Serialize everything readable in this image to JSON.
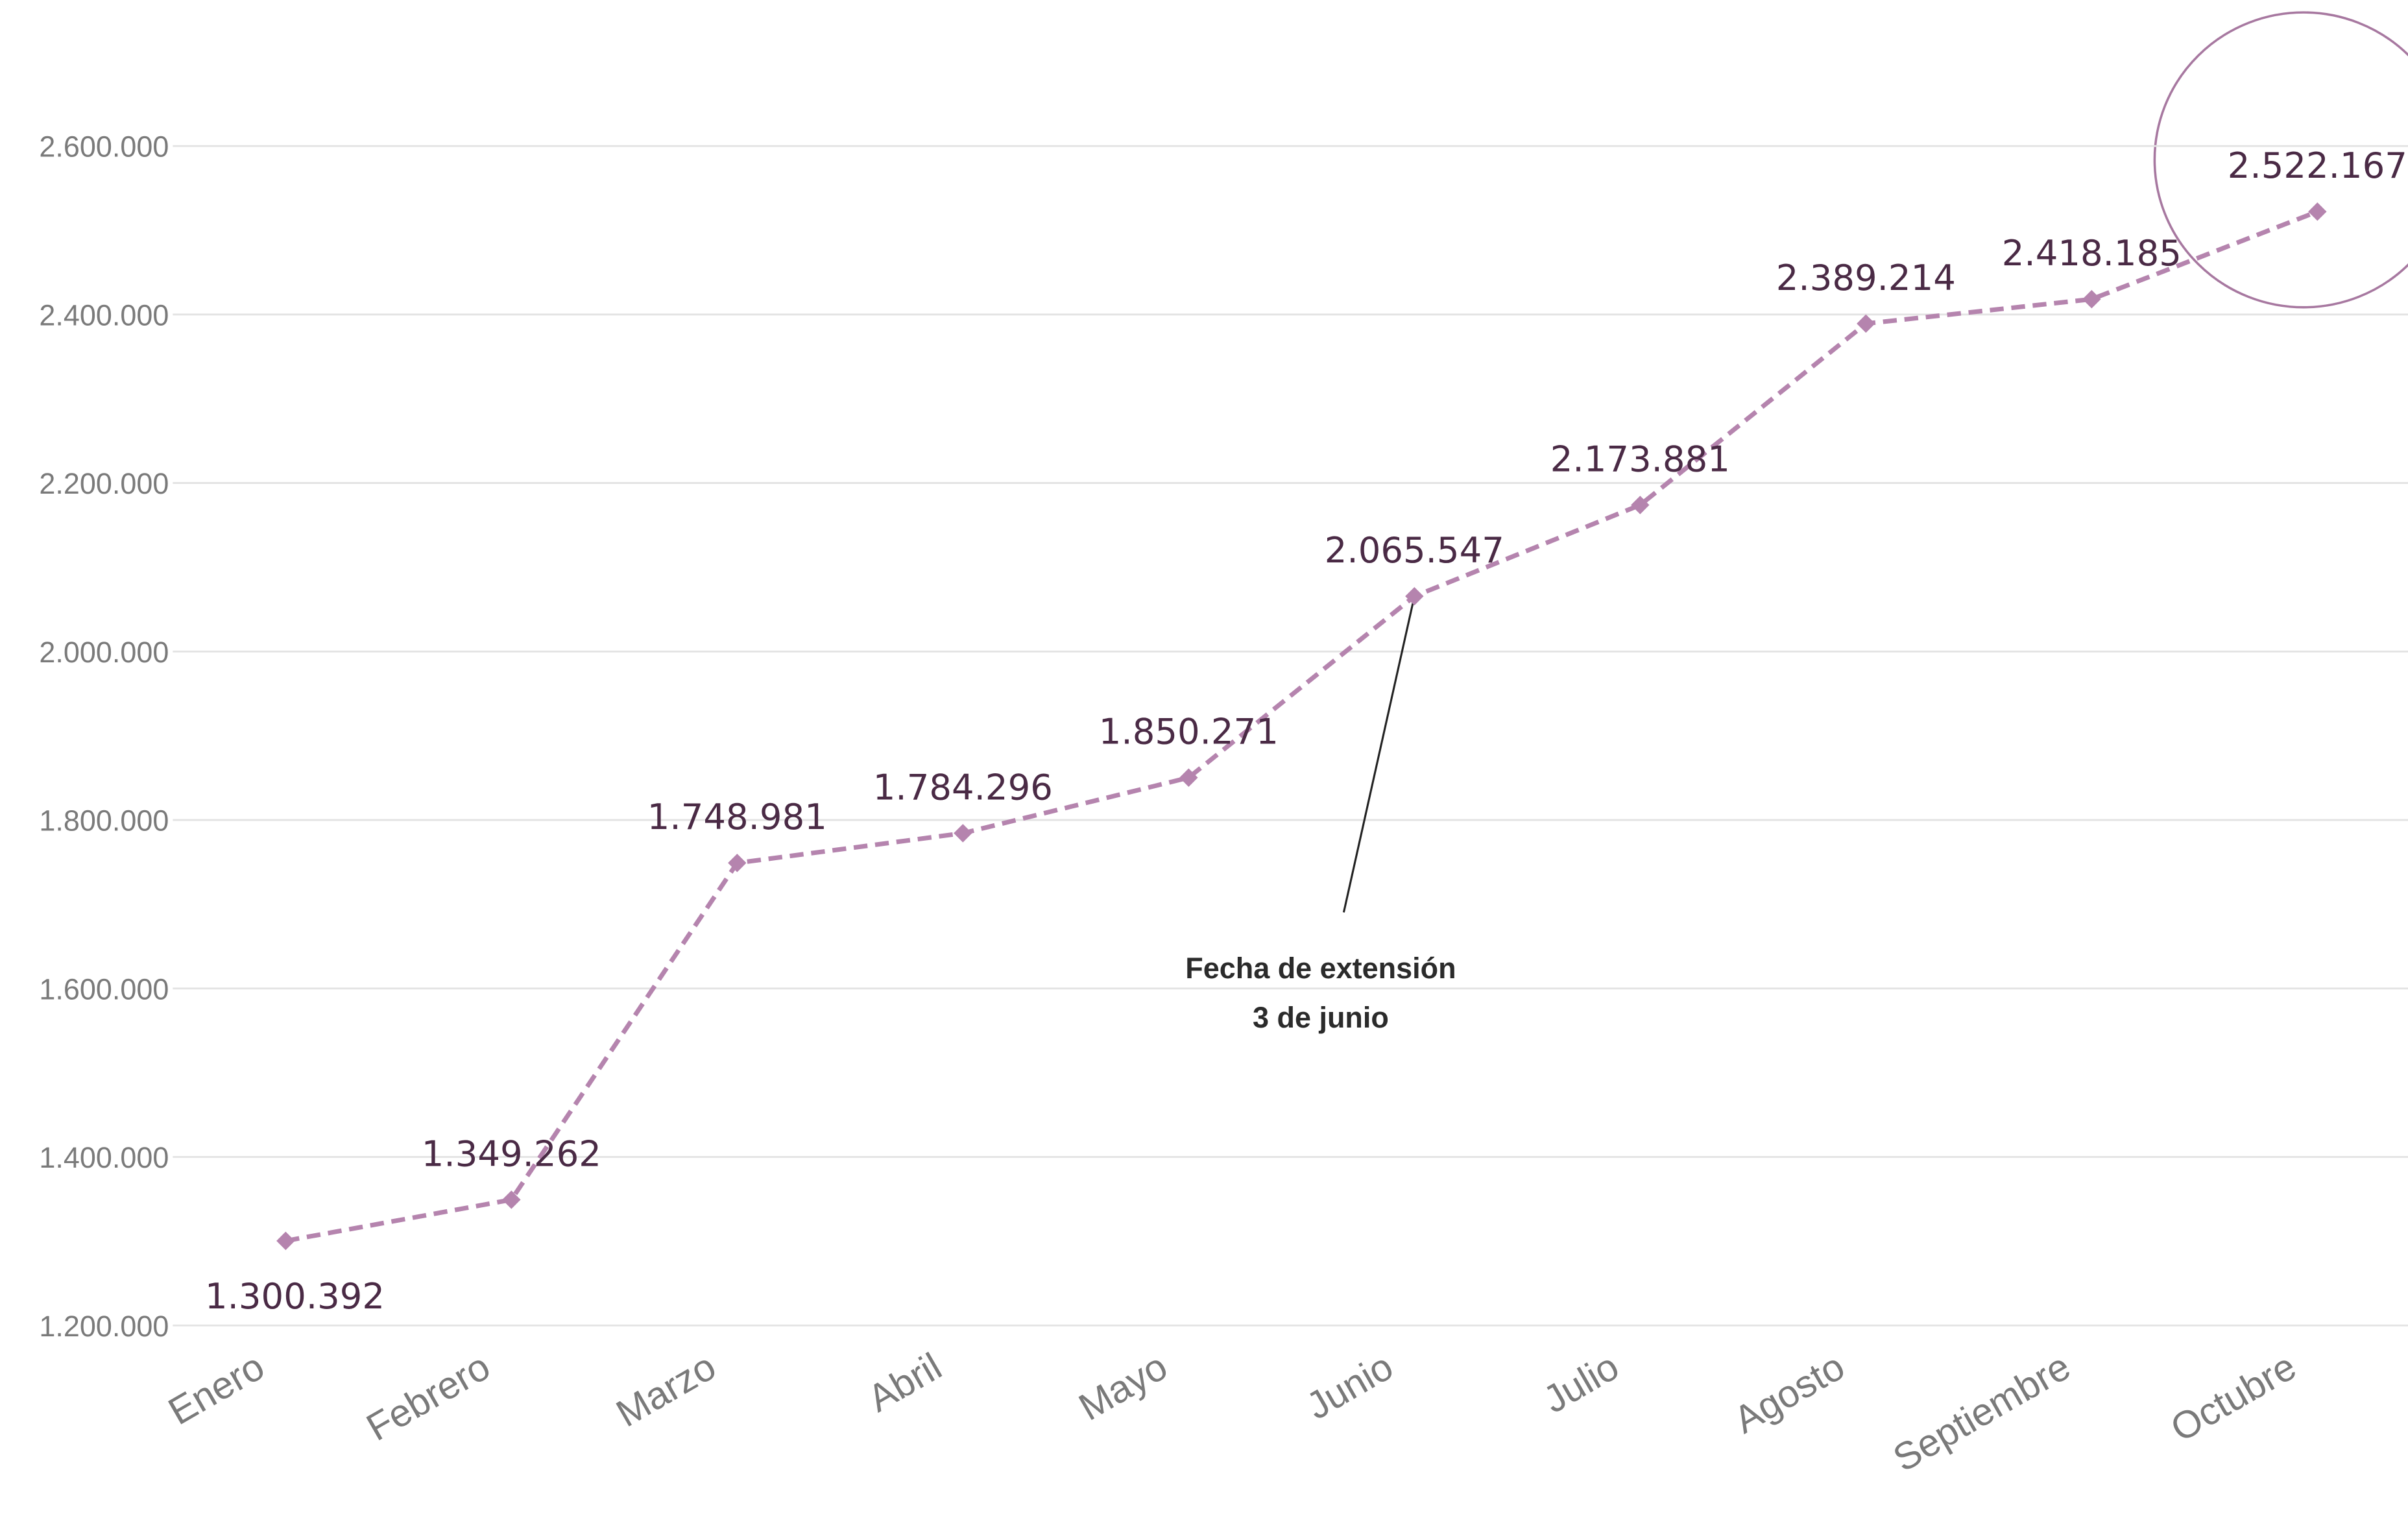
{
  "chart_data": {
    "type": "line",
    "categories": [
      "Enero",
      "Febrero",
      "Marzo",
      "Abril",
      "Mayo",
      "Junio",
      "Julio",
      "Agosto",
      "Septiembre",
      "Octubre"
    ],
    "values": [
      1300392,
      1349262,
      1748981,
      1784296,
      1850271,
      2065547,
      2173881,
      2389214,
      2418185,
      2522167
    ],
    "value_labels": [
      "1.300.392",
      "1.349.262",
      "1.748.981",
      "1.784.296",
      "1.850.271",
      "2.065.547",
      "2.173.881",
      "2.389.214",
      "2.418.185",
      "2.522.167"
    ],
    "color": "#b584ae",
    "ylim": [
      1200000,
      2600000
    ],
    "yticks": [
      {
        "value": 1200000,
        "label": "1.200.000"
      },
      {
        "value": 1400000,
        "label": "1.400.000"
      },
      {
        "value": 1600000,
        "label": "1.600.000"
      },
      {
        "value": 1800000,
        "label": "1.800.000"
      },
      {
        "value": 2000000,
        "label": "2.000.000"
      },
      {
        "value": 2200000,
        "label": "2.200.000"
      },
      {
        "value": 2400000,
        "label": "2.400.000"
      },
      {
        "value": 2600000,
        "label": "2.600.000"
      }
    ],
    "grid": true,
    "annotation": [
      "Fecha de extensión",
      "3 de junio"
    ]
  }
}
